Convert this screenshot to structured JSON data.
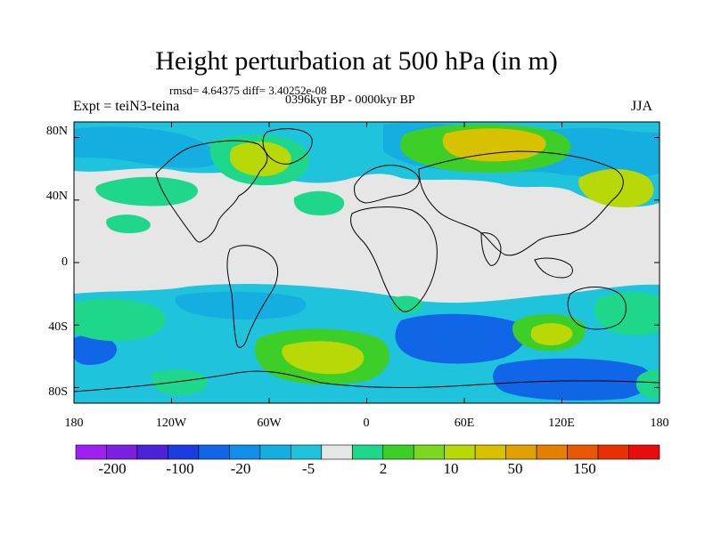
{
  "header": {
    "title": "Height perturbation at 500 hPa (in m)",
    "stats": "rmsd= 4.64375 diff= 3.40252e-08",
    "period": "0396kyr BP - 0000kyr BP",
    "experiment": "Expt = teiN3-teina",
    "season": "JJA"
  },
  "map": {
    "projection": "cylindrical equidistant",
    "field": "500 hPa height perturbation",
    "units": "m",
    "lat_labels": [
      "80N",
      "40N",
      "0",
      "40S",
      "80S"
    ],
    "lon_labels": [
      "180",
      "120W",
      "60W",
      "0",
      "60E",
      "120E",
      "180"
    ]
  },
  "colorbar": {
    "labels": [
      "-200",
      "-100",
      "-20",
      "-5",
      "2",
      "10",
      "50",
      "150"
    ],
    "colors": [
      "#a020f0",
      "#7b1fe0",
      "#4b22d8",
      "#1a3ce0",
      "#1166e8",
      "#138ee8",
      "#14aee0",
      "#20c3dc",
      "#e6e6e6",
      "#1ed78a",
      "#3dce28",
      "#7ad820",
      "#b8d808",
      "#d8c200",
      "#e0a000",
      "#e47f00",
      "#e85800",
      "#e83000",
      "#e80c0c"
    ]
  },
  "palette": {
    "neutral": "#e6e6e6",
    "neg_light": "#20c3dc",
    "neg_mid": "#14aee0",
    "neg_strong": "#1166e8",
    "pos_light": "#1ed78a",
    "pos_mid": "#3dce28",
    "pos_strong": "#b8d808",
    "pos_max": "#d8c200"
  }
}
